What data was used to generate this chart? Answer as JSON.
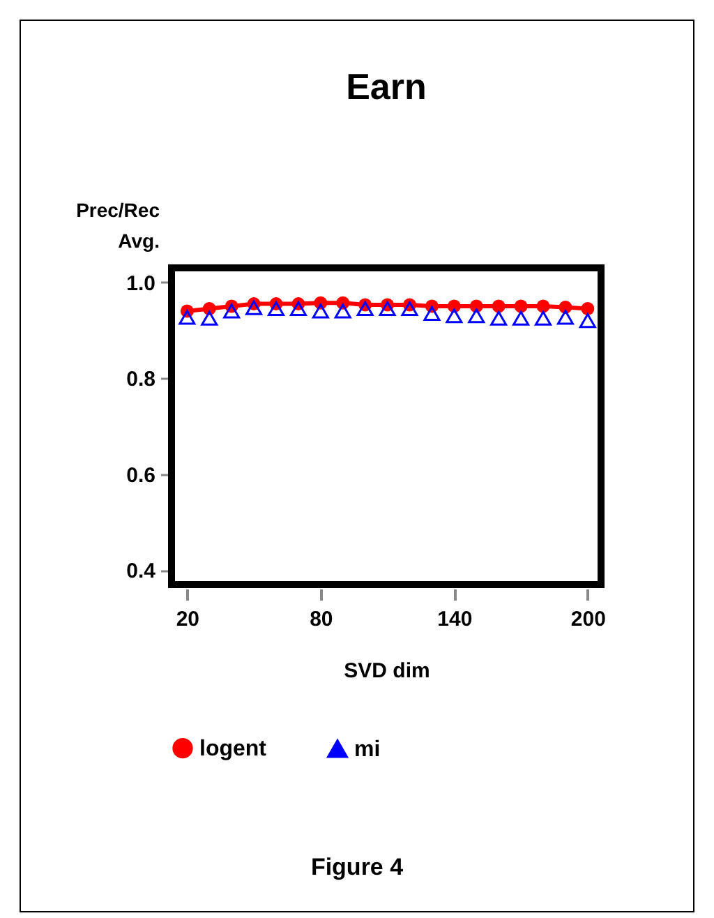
{
  "chart_data": {
    "type": "line",
    "title": "Earn",
    "xlabel": "SVD dim",
    "ylabel": "Prec/Rec Avg.",
    "x": [
      20,
      30,
      40,
      50,
      60,
      70,
      80,
      90,
      100,
      110,
      120,
      130,
      140,
      150,
      160,
      170,
      180,
      190,
      200
    ],
    "xlim": [
      13,
      206
    ],
    "xticks": [
      20,
      80,
      140,
      200
    ],
    "ylim": [
      0.37,
      1.03
    ],
    "yticks": [
      0.4,
      0.6,
      0.8,
      {
        "value": 1,
        "label": "1.0"
      }
    ],
    "series": [
      {
        "name": "logent",
        "marker": "circle",
        "color": "#ff0000",
        "values": [
          0.94,
          0.945,
          0.95,
          0.955,
          0.955,
          0.955,
          0.957,
          0.957,
          0.953,
          0.953,
          0.953,
          0.95,
          0.95,
          0.95,
          0.95,
          0.95,
          0.95,
          0.948,
          0.945
        ]
      },
      {
        "name": "mi",
        "type": "scatter",
        "marker": "triangle",
        "color": "#0000ff",
        "values": [
          0.927,
          0.925,
          0.94,
          0.947,
          0.945,
          0.945,
          0.94,
          0.94,
          0.945,
          0.945,
          0.945,
          0.935,
          0.93,
          0.93,
          0.925,
          0.925,
          0.925,
          0.927,
          0.92
        ]
      }
    ],
    "legend": "bottom",
    "grid": false,
    "annotations": [
      "Figure 4"
    ]
  }
}
